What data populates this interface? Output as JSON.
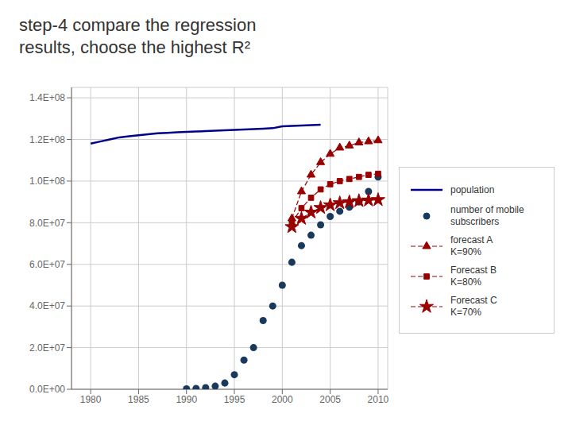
{
  "chart_data": {
    "type": "line",
    "title": "step-4 compare the regression\nresults, choose the highest R²",
    "xlim": [
      1978,
      2011
    ],
    "xticks": [
      1980,
      1985,
      1990,
      1995,
      2000,
      2005,
      2010
    ],
    "ylim": [
      0,
      145000000.0
    ],
    "yticks": [
      {
        "value": 0,
        "label": "0.0E+00"
      },
      {
        "value": 20000000.0,
        "label": "2.0E+07"
      },
      {
        "value": 40000000.0,
        "label": "4.0E+07"
      },
      {
        "value": 60000000.0,
        "label": "6.0E+07"
      },
      {
        "value": 80000000.0,
        "label": "8.0E+07"
      },
      {
        "value": 100000000.0,
        "label": "1.0E+08"
      },
      {
        "value": 120000000.0,
        "label": "1.2E+08"
      },
      {
        "value": 140000000.0,
        "label": "1.4E+08"
      }
    ],
    "grid": true,
    "legend": "right",
    "series": [
      {
        "name": "population",
        "type": "line",
        "color": "#00008B",
        "marker": "none",
        "line_style": "solid",
        "x": [
          1980,
          1981,
          1982,
          1983,
          1984,
          1985,
          1986,
          1987,
          1988,
          1989,
          1990,
          1991,
          1992,
          1993,
          1994,
          1995,
          1996,
          1997,
          1998,
          1999,
          2000,
          2001,
          2002,
          2003,
          2004
        ],
        "values": [
          118000000.0,
          119000000.0,
          120000000.0,
          121000000.0,
          121500000.0,
          122000000.0,
          122500000.0,
          123000000.0,
          123200000.0,
          123400000.0,
          123600000.0,
          123800000.0,
          124000000.0,
          124200000.0,
          124400000.0,
          124600000.0,
          124800000.0,
          125000000.0,
          125200000.0,
          125400000.0,
          126300000.0,
          126500000.0,
          126700000.0,
          126900000.0,
          127100000.0
        ]
      },
      {
        "name": "number of mobile\nsubscribers",
        "type": "scatter",
        "color": "#1a3a5c",
        "marker": "circle",
        "x": [
          1990,
          1991,
          1992,
          1993,
          1994,
          1995,
          1996,
          1997,
          1998,
          1999,
          2000,
          2001,
          2002,
          2003,
          2004,
          2005,
          2006,
          2007,
          2008,
          2009,
          2010
        ],
        "values": [
          200000.0,
          400000.0,
          800000.0,
          1500000.0,
          3000000.0,
          7000000.0,
          14000000.0,
          20000000.0,
          33000000.0,
          40000000.0,
          50000000.0,
          61000000.0,
          69000000.0,
          74000000.0,
          79000000.0,
          83000000.0,
          85500000.0,
          87500000.0,
          90000000.0,
          95000000.0,
          102000000.0
        ]
      },
      {
        "name": "forecast A\nK=90%",
        "type": "line",
        "color": "#990000",
        "marker": "triangle",
        "line_style": "dashed",
        "x": [
          2001,
          2002,
          2003,
          2004,
          2005,
          2006,
          2007,
          2008,
          2009,
          2010
        ],
        "values": [
          82000000.0,
          95000000.0,
          103000000.0,
          109000000.0,
          113000000.0,
          116000000.0,
          117000000.0,
          118500000.0,
          119000000.0,
          119500000.0
        ]
      },
      {
        "name": "Forecast B\nK=80%",
        "type": "line",
        "color": "#990000",
        "marker": "square",
        "line_style": "dashed",
        "x": [
          2001,
          2002,
          2003,
          2004,
          2005,
          2006,
          2007,
          2008,
          2009,
          2010
        ],
        "values": [
          80000000.0,
          87000000.0,
          92000000.0,
          96000000.0,
          98500000.0,
          100000000.0,
          101000000.0,
          102000000.0,
          103000000.0,
          103500000.0
        ]
      },
      {
        "name": "Forecast C\nK=70%",
        "type": "line",
        "color": "#990000",
        "marker": "star",
        "line_style": "dashed",
        "x": [
          2001,
          2002,
          2003,
          2004,
          2005,
          2006,
          2007,
          2008,
          2009,
          2010
        ],
        "values": [
          78000000.0,
          82000000.0,
          85000000.0,
          87200000.0,
          88500000.0,
          89500000.0,
          90000000.0,
          90500000.0,
          90800000.0,
          91000000.0
        ]
      }
    ]
  }
}
